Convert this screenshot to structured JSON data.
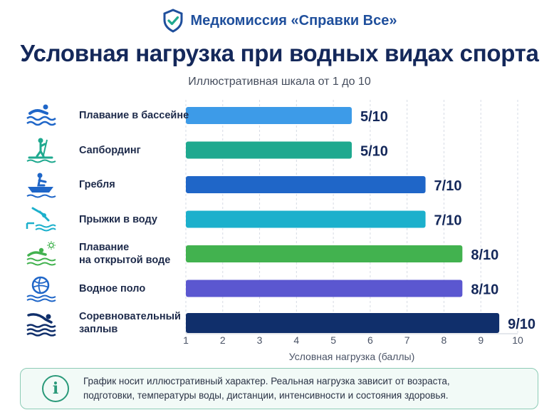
{
  "brand": {
    "name": "Медкомиссия «Справки Все»",
    "icon": "shield-check-icon",
    "color": "#1f4f9c"
  },
  "title": "Условная нагрузка при водных видах спорта",
  "subtitle": "Иллюстративная шкала от 1 до 10",
  "chart_data": {
    "type": "bar",
    "orientation": "horizontal",
    "categories": [
      "Плавание в бассейне",
      "Сапбординг",
      "Гребля",
      "Прыжки в воду",
      "Плавание\nна открытой воде",
      "Водное поло",
      "Соревновательный\nзаплыв"
    ],
    "values": [
      5,
      5,
      7,
      7,
      8,
      8,
      9
    ],
    "value_labels": [
      "5/10",
      "5/10",
      "7/10",
      "7/10",
      "8/10",
      "8/10",
      "9/10"
    ],
    "colors": [
      "#3d9be8",
      "#1fa98f",
      "#1f66c8",
      "#1cb0cc",
      "#42b24f",
      "#5b57d0",
      "#102f6b"
    ],
    "icons": [
      "swimmer-icon",
      "paddleboard-icon",
      "rowing-icon",
      "diving-icon",
      "open-water-swim-icon",
      "water-polo-icon",
      "competitive-swim-icon"
    ],
    "xlim": [
      1,
      10
    ],
    "xticks": [
      "1",
      "2",
      "3",
      "4",
      "5",
      "6",
      "7",
      "8",
      "9",
      "10"
    ],
    "xlabel": "Условная нагрузка (баллы)",
    "grid": "vertical-dashed"
  },
  "note": {
    "icon": "info-icon",
    "text_line1": "График носит иллюстративный характер. Реальная нагрузка зависит от возраста,",
    "text_line2": "подготовки, температуры воды, дистанции, интенсивности и состояния здоровья."
  }
}
